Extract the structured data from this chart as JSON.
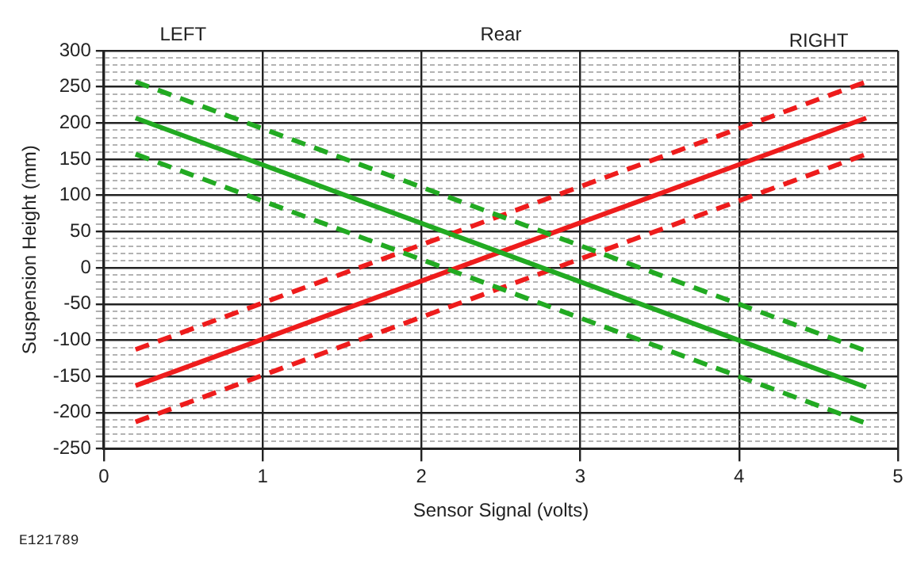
{
  "chart_data": {
    "type": "line",
    "xlabel": "Sensor Signal (volts)",
    "ylabel": "Suspension Height (mm)",
    "annotations": [
      "LEFT",
      "Rear",
      "RIGHT",
      "E121789"
    ],
    "xlim": [
      0,
      5
    ],
    "xticks": [
      0,
      1,
      2,
      3,
      4,
      5
    ],
    "ylim": [
      -250,
      300
    ],
    "yticks": [
      -250,
      {
        "value": -240,
        "label": null
      },
      {
        "value": -230,
        "label": null
      },
      {
        "value": -220,
        "label": null
      },
      {
        "value": -210,
        "label": null
      },
      -200,
      {
        "value": -190,
        "label": null
      },
      {
        "value": -180,
        "label": null
      },
      {
        "value": -170,
        "label": null
      },
      {
        "value": -160,
        "label": null
      },
      -150,
      {
        "value": -140,
        "label": null
      },
      {
        "value": -130,
        "label": null
      },
      {
        "value": -120,
        "label": null
      },
      {
        "value": -110,
        "label": null
      },
      -100,
      {
        "value": -90,
        "label": null
      },
      {
        "value": -80,
        "label": null
      },
      {
        "value": -70,
        "label": null
      },
      {
        "value": -60,
        "label": null
      },
      -50,
      {
        "value": -40,
        "label": null
      },
      {
        "value": -30,
        "label": null
      },
      {
        "value": -20,
        "label": null
      },
      {
        "value": -10,
        "label": null
      },
      0,
      {
        "value": 10,
        "label": null
      },
      {
        "value": 20,
        "label": null
      },
      {
        "value": 30,
        "label": null
      },
      {
        "value": 40,
        "label": null
      },
      50,
      {
        "value": 60,
        "label": null
      },
      {
        "value": 70,
        "label": null
      },
      {
        "value": 80,
        "label": null
      },
      {
        "value": 90,
        "label": null
      },
      100,
      {
        "value": 110,
        "label": null
      },
      {
        "value": 120,
        "label": null
      },
      {
        "value": 130,
        "label": null
      },
      {
        "value": 140,
        "label": null
      },
      150,
      {
        "value": 160,
        "label": null
      },
      {
        "value": 170,
        "label": null
      },
      {
        "value": 180,
        "label": null
      },
      {
        "value": 190,
        "label": null
      },
      200,
      {
        "value": 210,
        "label": null
      },
      {
        "value": 220,
        "label": null
      },
      {
        "value": 230,
        "label": null
      },
      {
        "value": 240,
        "label": null
      },
      250,
      {
        "value": 260,
        "label": null
      },
      {
        "value": 270,
        "label": null
      },
      {
        "value": 280,
        "label": null
      },
      {
        "value": 290,
        "label": null
      },
      300
    ],
    "grid": true,
    "legend": false,
    "marker": "none",
    "x": [
      0.2,
      4.8
    ],
    "series": [
      {
        "color": "#22aa22",
        "line_style": "dashed",
        "values": [
          257,
          -115
        ]
      },
      {
        "color": "#22aa22",
        "line_style": "solid",
        "values": [
          207,
          -165
        ]
      },
      {
        "color": "#22aa22",
        "line_style": "dashed",
        "values": [
          157,
          -215
        ]
      },
      {
        "color": "#ee1c1c",
        "line_style": "dashed",
        "values": [
          -113,
          257
        ]
      },
      {
        "color": "#ee1c1c",
        "line_style": "solid",
        "values": [
          -163,
          207
        ]
      },
      {
        "color": "#ee1c1c",
        "line_style": "dashed",
        "values": [
          -213,
          157
        ]
      }
    ]
  }
}
